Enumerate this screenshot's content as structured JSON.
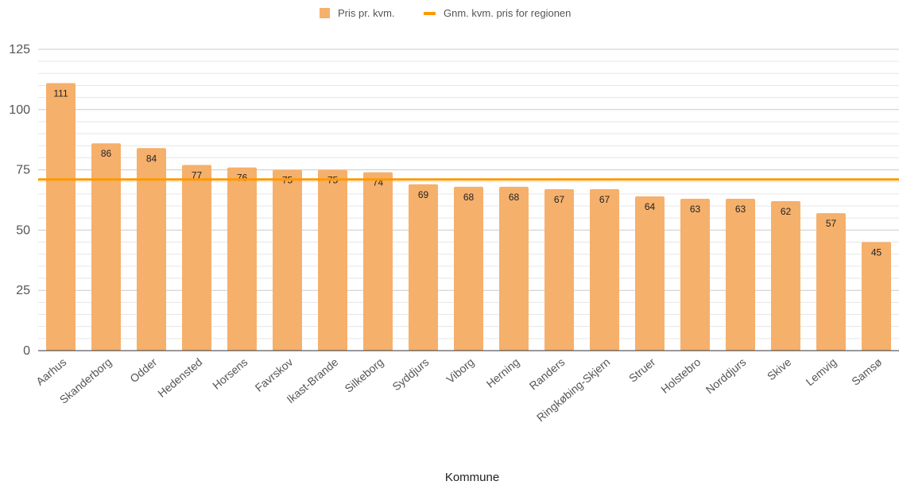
{
  "chart_data": {
    "type": "bar",
    "xlabel": "Kommune",
    "ylabel": "",
    "ylim": [
      0,
      125
    ],
    "yticks": [
      0,
      25,
      50,
      75,
      100,
      125
    ],
    "grid": true,
    "legend_position": "top-center",
    "categories": [
      "Aarhus",
      "Skanderborg",
      "Odder",
      "Hedensted",
      "Horsens",
      "Favrskov",
      "Ikast-Brande",
      "Silkeborg",
      "Syddjurs",
      "Viborg",
      "Herning",
      "Randers",
      "Ringkøbing-Skjern",
      "Struer",
      "Holstebro",
      "Norddjurs",
      "Skive",
      "Lemvig",
      "Samsø"
    ],
    "series": [
      {
        "name": "Pris pr. kvm.",
        "type": "bar",
        "color": "#f5b06c",
        "values": [
          111,
          86,
          84,
          77,
          76,
          75,
          75,
          74,
          69,
          68,
          68,
          67,
          67,
          64,
          63,
          63,
          62,
          57,
          45
        ],
        "labels": [
          "111",
          "86",
          "84",
          "77",
          "76",
          "75",
          "75",
          "74",
          "69",
          "68",
          "68",
          "67",
          "67",
          "64",
          "63",
          "63",
          "62",
          "57",
          "45"
        ]
      },
      {
        "name": "Gnm. kvm. pris for regionen",
        "type": "reference-line",
        "color": "#ff9900",
        "value": 71
      }
    ]
  }
}
